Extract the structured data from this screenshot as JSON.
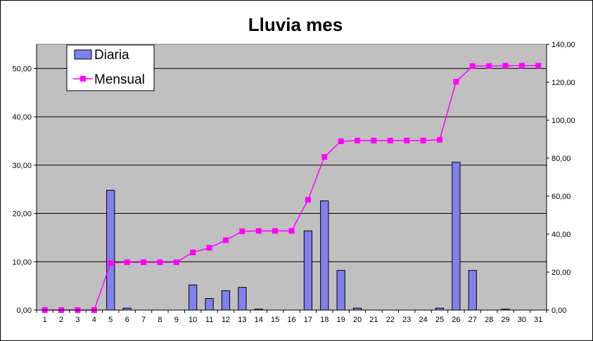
{
  "chart_data": {
    "type": "bar",
    "title": "Lluvia mes",
    "x": [
      1,
      2,
      3,
      4,
      5,
      6,
      7,
      8,
      9,
      10,
      11,
      12,
      13,
      14,
      15,
      16,
      17,
      18,
      19,
      20,
      21,
      22,
      23,
      24,
      25,
      26,
      27,
      28,
      29,
      30,
      31
    ],
    "x_tick_labels": [
      "1",
      "2",
      "3",
      "4",
      "5",
      "6",
      "7",
      "8",
      "9",
      "10",
      "11",
      "12",
      "13",
      "14",
      "15",
      "16",
      "17",
      "18",
      "19",
      "20",
      "21",
      "22",
      "23",
      "24",
      "25",
      "26",
      "27",
      "28",
      "29",
      "30",
      "31"
    ],
    "left_axis": {
      "ylim": [
        0,
        55
      ],
      "ticks": [
        0,
        10,
        20,
        30,
        40,
        50
      ],
      "tick_labels": [
        "0,00",
        "10,00",
        "20,00",
        "30,00",
        "40,00",
        "50,00"
      ]
    },
    "right_axis": {
      "ylim": [
        0,
        140
      ],
      "ticks": [
        0,
        20,
        40,
        60,
        80,
        100,
        120,
        140
      ],
      "tick_labels": [
        "0,00",
        "20,00",
        "40,00",
        "60,00",
        "80,00",
        "100,00",
        "120,00",
        "140,00"
      ]
    },
    "grid": "horizontal, major ticks of left axis",
    "legend_position": "top-left",
    "series": [
      {
        "name": "Diaria",
        "type": "bar",
        "axis": "left",
        "color": "#8080f0",
        "values": [
          0,
          0,
          0,
          0,
          24.8,
          0.4,
          0,
          0,
          0,
          5.2,
          2.4,
          4.0,
          4.7,
          0.2,
          0,
          0,
          16.4,
          22.6,
          8.2,
          0.4,
          0,
          0,
          0,
          0,
          0.4,
          30.6,
          8.2,
          0,
          0.2,
          0,
          0
        ]
      },
      {
        "name": "Mensual",
        "type": "line",
        "axis": "right",
        "color": "#ff00ff",
        "values": [
          0,
          0,
          0,
          0,
          24.8,
          25.2,
          25.2,
          25.2,
          25.2,
          30.4,
          32.8,
          36.8,
          41.5,
          41.7,
          41.7,
          41.7,
          58.1,
          80.7,
          88.9,
          89.3,
          89.3,
          89.3,
          89.3,
          89.3,
          89.7,
          120.3,
          128.5,
          128.5,
          128.7,
          128.7,
          128.7
        ]
      }
    ],
    "colors": {
      "plot_background": "#c0c0c0",
      "bar_fill": "#8080f0",
      "bar_stroke": "#000000",
      "line": "#ff00ff",
      "gridline": "#000000"
    }
  }
}
